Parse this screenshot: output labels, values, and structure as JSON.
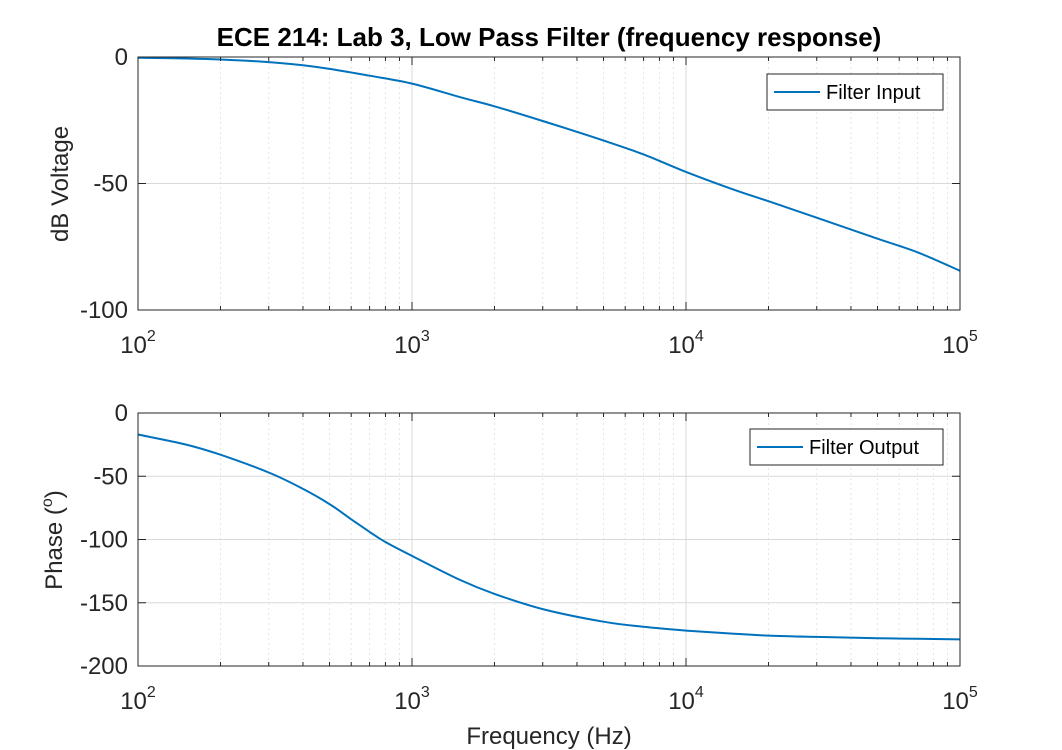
{
  "chart_data": [
    {
      "type": "line",
      "title": "ECE 214: Lab 3, Low Pass Filter (frequency response)",
      "xlabel": "",
      "ylabel": "dB Voltage",
      "xscale": "log",
      "xlim": [
        100,
        100000
      ],
      "ylim": [
        -100,
        0
      ],
      "yticks": [
        0,
        -50,
        -100
      ],
      "xticks": [
        100,
        1000,
        10000,
        100000
      ],
      "grid": true,
      "legend_position": "top-right",
      "series": [
        {
          "name": "Filter Input",
          "color": "#0072bd",
          "x": [
            100,
            150,
            200,
            300,
            400,
            500,
            700,
            1000,
            1500,
            2000,
            3000,
            5000,
            7000,
            10000,
            15000,
            20000,
            30000,
            50000,
            70000,
            100000
          ],
          "y": [
            -0.3,
            -0.6,
            -1.0,
            -2.0,
            -3.3,
            -4.7,
            -7.4,
            -10.5,
            -15.9,
            -19.5,
            -25.3,
            -33.0,
            -38.5,
            -45.4,
            -52.5,
            -57.0,
            -63.5,
            -71.8,
            -77.2,
            -84.5
          ]
        }
      ]
    },
    {
      "type": "line",
      "title": "",
      "xlabel": "Frequency (Hz)",
      "ylabel": "Phase (",
      "ylabel_sup": "o",
      "ylabel_end": ")",
      "xscale": "log",
      "xlim": [
        100,
        100000
      ],
      "ylim": [
        -200,
        0
      ],
      "yticks": [
        0,
        -50,
        -100,
        -150,
        -200
      ],
      "xticks": [
        100,
        1000,
        10000,
        100000
      ],
      "grid": true,
      "legend_position": "top-right",
      "series": [
        {
          "name": "Filter Output",
          "color": "#0072bd",
          "x": [
            100,
            150,
            200,
            300,
            400,
            500,
            600,
            700,
            800,
            1000,
            1500,
            2000,
            3000,
            5000,
            7000,
            10000,
            15000,
            20000,
            30000,
            50000,
            70000,
            100000
          ],
          "y": [
            -17,
            -25,
            -33,
            -47,
            -60,
            -72,
            -84,
            -94,
            -102,
            -113,
            -132,
            -143,
            -155,
            -165,
            -169,
            -172,
            -174.5,
            -176,
            -177,
            -178,
            -178.5,
            -179
          ]
        }
      ]
    }
  ]
}
